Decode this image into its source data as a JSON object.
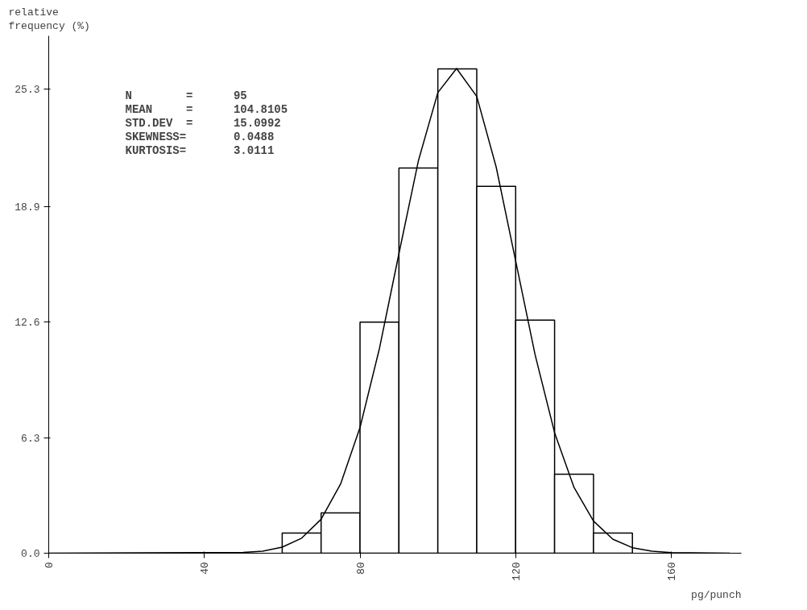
{
  "chart_data": {
    "type": "histogram",
    "xlabel": "pg/punch",
    "ylabel": "relative\nfrequency (%)",
    "bins": [
      60,
      70,
      80,
      90,
      100,
      110,
      120,
      130,
      140,
      150
    ],
    "values": [
      1.1,
      2.2,
      12.6,
      21.0,
      26.4,
      20.0,
      12.7,
      4.3,
      1.1
    ],
    "color": "#ffffff",
    "series": [
      {
        "type": "line",
        "color": "#000000",
        "x": [
          0,
          50,
          55,
          60,
          65,
          70,
          75,
          80,
          85,
          90,
          95,
          100,
          104.81,
          110,
          115,
          120,
          125,
          130,
          135,
          140,
          145,
          150,
          155,
          160,
          175
        ],
        "values": [
          0,
          0.04,
          0.11,
          0.33,
          0.82,
          1.85,
          3.77,
          6.85,
          11.17,
          16.33,
          21.39,
          25.11,
          26.42,
          24.9,
          21.04,
          15.93,
          10.81,
          6.57,
          3.58,
          1.75,
          0.76,
          0.3,
          0.11,
          0.03,
          0
        ]
      }
    ],
    "annotations": [
      "N        =      95",
      "MEAN     =      104.8105",
      "STD.DEV  =      15.0992",
      "SKEWNESS=       0.0488",
      "KURTOSIS=       3.0111"
    ],
    "xlim": [
      0,
      178
    ],
    "ylim": [
      0,
      28.2
    ],
    "xticks": [
      0,
      40,
      80,
      120,
      160
    ],
    "yticks": [
      {
        "value": 0,
        "label": "0.0"
      },
      6.3,
      12.6,
      18.9,
      25.3
    ],
    "grid": false
  }
}
